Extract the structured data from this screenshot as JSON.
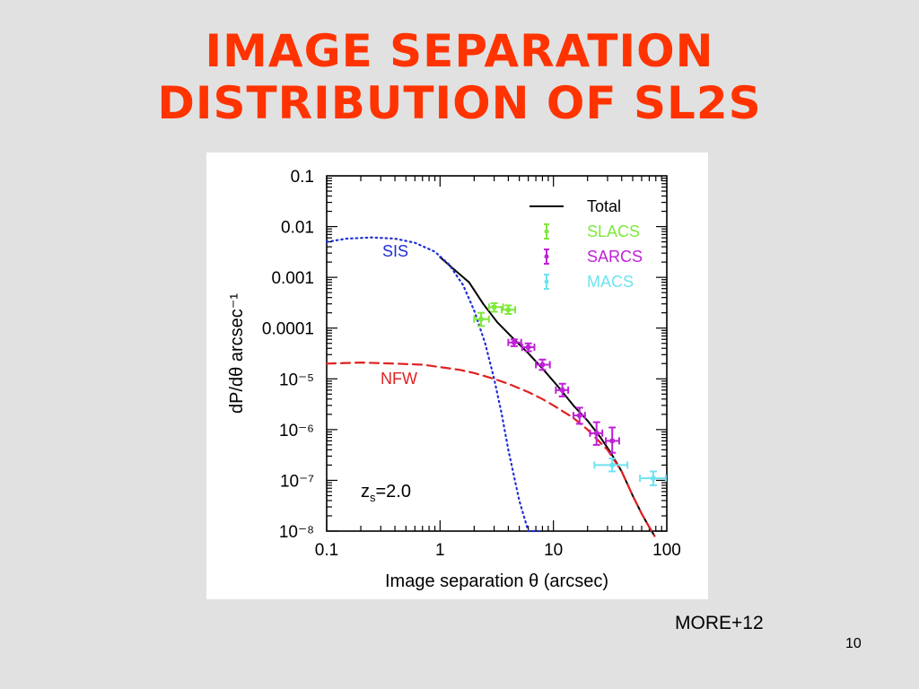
{
  "slide": {
    "title_line1": "IMAGE SEPARATION",
    "title_line2": "DISTRIBUTION OF SL2S",
    "citation": "MORE+12",
    "page_number": "10"
  },
  "colors": {
    "title": "#ff3300",
    "total": "#000000",
    "sis": "#1f2fd6",
    "nfw": "#e02020",
    "slacs": "#7fe83a",
    "sarcs": "#c020d8",
    "macs": "#6fe2ef"
  },
  "chart_data": {
    "type": "line",
    "x_scale": "log",
    "y_scale": "log",
    "xlim": [
      0.1,
      100
    ],
    "ylim": [
      1e-08,
      0.1
    ],
    "xlabel": "Image separation θ (arcsec)",
    "ylabel": "dP/dθ arcsec⁻¹",
    "x_ticks": [
      {
        "value": 0.1,
        "label": "0.1"
      },
      {
        "value": 1,
        "label": "1"
      },
      {
        "value": 10,
        "label": "10"
      },
      {
        "value": 100,
        "label": "100"
      }
    ],
    "y_ticks": [
      {
        "value": 0.1,
        "label": "0.1"
      },
      {
        "value": 0.01,
        "label": "0.01"
      },
      {
        "value": 0.001,
        "label": "0.001"
      },
      {
        "value": 0.0001,
        "label": "0.0001"
      },
      {
        "value": 1e-05,
        "label": "10⁻⁵"
      },
      {
        "value": 1e-06,
        "label": "10⁻⁶"
      },
      {
        "value": 1e-07,
        "label": "10⁻⁷"
      },
      {
        "value": 1e-08,
        "label": "10⁻⁸"
      }
    ],
    "annotation": "zs=2.0",
    "legend_position": "top-right",
    "curves": [
      {
        "name": "Total",
        "style": "solid",
        "color_key": "total",
        "in_legend": true,
        "x": [
          1.0,
          1.3,
          1.8,
          2.4,
          3.2,
          4.5,
          6.0,
          8.0,
          11,
          15,
          20,
          26,
          32,
          40,
          50,
          60,
          70,
          78
        ],
        "y": [
          0.0025,
          0.0015,
          0.0008,
          0.0003,
          0.00013,
          6e-05,
          3.2e-05,
          1.6e-05,
          7e-06,
          3e-06,
          1.5e-06,
          7e-07,
          3.5e-07,
          1.5e-07,
          5e-08,
          2.2e-08,
          1.2e-08,
          8e-09
        ]
      },
      {
        "name": "SIS",
        "style": "dotted",
        "color_key": "sis",
        "in_legend": false,
        "x": [
          0.1,
          0.15,
          0.25,
          0.4,
          0.6,
          0.9,
          1.2,
          1.6,
          2.0,
          2.5,
          3.0,
          3.5,
          4.0,
          5.0,
          6.0,
          7.0,
          8.0
        ],
        "y": [
          0.005,
          0.0058,
          0.0061,
          0.0058,
          0.0048,
          0.0032,
          0.0018,
          0.0007,
          0.00022,
          5e-05,
          1e-05,
          2e-06,
          4e-07,
          4e-08,
          1e-08,
          1e-08,
          1e-08
        ]
      },
      {
        "name": "NFW",
        "style": "dashed",
        "color_key": "nfw",
        "in_legend": false,
        "x": [
          0.1,
          0.2,
          0.4,
          0.7,
          1.0,
          1.5,
          2.0,
          3.0,
          4.0,
          6.0,
          8.0,
          10,
          15,
          20,
          30,
          40,
          50,
          60,
          70,
          78
        ],
        "y": [
          2e-05,
          2.1e-05,
          2e-05,
          1.9e-05,
          1.7e-05,
          1.5e-05,
          1.3e-05,
          1e-05,
          8e-06,
          5.5e-06,
          4e-06,
          3e-06,
          1.7e-06,
          1e-06,
          4e-07,
          1.5e-07,
          5e-08,
          2.2e-08,
          1.2e-08,
          8e-09
        ]
      }
    ],
    "series": [
      {
        "name": "SLACS",
        "color_key": "slacs",
        "points": [
          {
            "x": 2.3,
            "y": 0.00015,
            "x_err": [
              2.0,
              2.7
            ],
            "y_err": [
              0.00011,
              0.0002
            ]
          },
          {
            "x": 3.0,
            "y": 0.00026,
            "x_err": [
              2.7,
              3.6
            ],
            "y_err": [
              0.00021,
              0.00031
            ]
          },
          {
            "x": 4.0,
            "y": 0.00023,
            "x_err": [
              3.5,
              4.6
            ],
            "y_err": [
              0.00019,
              0.00028
            ]
          }
        ]
      },
      {
        "name": "SARCS",
        "color_key": "sarcs",
        "points": [
          {
            "x": 4.5,
            "y": 5.2e-05,
            "x_err": [
              4.0,
              5.2
            ],
            "y_err": [
              4.4e-05,
              6e-05
            ]
          },
          {
            "x": 6.0,
            "y": 4.2e-05,
            "x_err": [
              5.3,
              6.8
            ],
            "y_err": [
              3.5e-05,
              5e-05
            ]
          },
          {
            "x": 8.0,
            "y": 1.9e-05,
            "x_err": [
              7.0,
              9.3
            ],
            "y_err": [
              1.5e-05,
              2.4e-05
            ]
          },
          {
            "x": 12,
            "y": 6e-06,
            "x_err": [
              10.5,
              13.5
            ],
            "y_err": [
              4.5e-06,
              8e-06
            ]
          },
          {
            "x": 17,
            "y": 1.9e-06,
            "x_err": [
              15,
              19
            ],
            "y_err": [
              1.3e-06,
              2.7e-06
            ]
          },
          {
            "x": 24,
            "y": 8.5e-07,
            "x_err": [
              21,
              27
            ],
            "y_err": [
              5e-07,
              1.4e-06
            ]
          },
          {
            "x": 33,
            "y": 6e-07,
            "x_err": [
              29,
              38
            ],
            "y_err": [
              3.5e-07,
              1.1e-06
            ]
          }
        ]
      },
      {
        "name": "MACS",
        "color_key": "macs",
        "points": [
          {
            "x": 33,
            "y": 2e-07,
            "x_err": [
              23,
              45
            ],
            "y_err": [
              1.5e-07,
              2.7e-07
            ]
          },
          {
            "x": 76,
            "y": 1.1e-07,
            "x_err": [
              58,
              98
            ],
            "y_err": [
              8e-08,
              1.5e-07
            ]
          }
        ]
      }
    ],
    "legend": [
      {
        "label": "Total",
        "kind": "line",
        "color_key": "total"
      },
      {
        "label": "SLACS",
        "kind": "errorbar",
        "color_key": "slacs"
      },
      {
        "label": "SARCS",
        "kind": "errorbar",
        "color_key": "sarcs"
      },
      {
        "label": "MACS",
        "kind": "errorbar",
        "color_key": "macs"
      }
    ],
    "curve_labels": [
      {
        "text": "SIS",
        "color_key": "sis"
      },
      {
        "text": "NFW",
        "color_key": "nfw"
      }
    ]
  }
}
